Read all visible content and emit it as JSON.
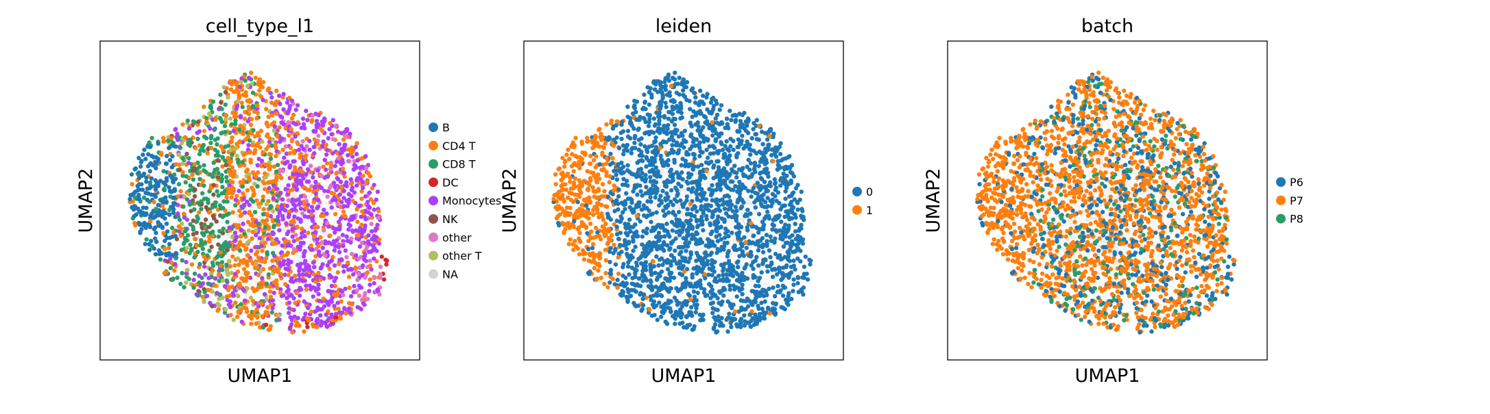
{
  "chart_data": [
    {
      "type": "scatter",
      "title": "cell_type_l1",
      "xlabel": "UMAP1",
      "ylabel": "UMAP2",
      "grid": false,
      "ticks": false,
      "legend_placement": "right",
      "legend": [
        {
          "label": "B",
          "color": "#1f77b4"
        },
        {
          "label": "CD4 T",
          "color": "#ff7f0e"
        },
        {
          "label": "CD8 T",
          "color": "#279e68"
        },
        {
          "label": "DC",
          "color": "#d62728"
        },
        {
          "label": "Monocytes",
          "color": "#aa40fc"
        },
        {
          "label": "NK",
          "color": "#8c564b"
        },
        {
          "label": "other",
          "color": "#e377c2"
        },
        {
          "label": "other T",
          "color": "#b5bd61"
        },
        {
          "label": "NA",
          "color": "#d3d3d3"
        }
      ]
    },
    {
      "type": "scatter",
      "title": "leiden",
      "xlabel": "UMAP1",
      "ylabel": "UMAP2",
      "grid": false,
      "ticks": false,
      "legend_placement": "right",
      "legend": [
        {
          "label": "0",
          "color": "#1f77b4"
        },
        {
          "label": "1",
          "color": "#ff7f0e"
        }
      ]
    },
    {
      "type": "scatter",
      "title": "batch",
      "xlabel": "UMAP1",
      "ylabel": "UMAP2",
      "grid": false,
      "ticks": false,
      "legend_placement": "right",
      "legend": [
        {
          "label": "P6",
          "color": "#1f77b4"
        },
        {
          "label": "P7",
          "color": "#ff7f0e"
        },
        {
          "label": "P8",
          "color": "#279e68"
        }
      ]
    }
  ],
  "colors": {
    "edge_gray": "#8c8c8c",
    "frame": "#000000"
  }
}
